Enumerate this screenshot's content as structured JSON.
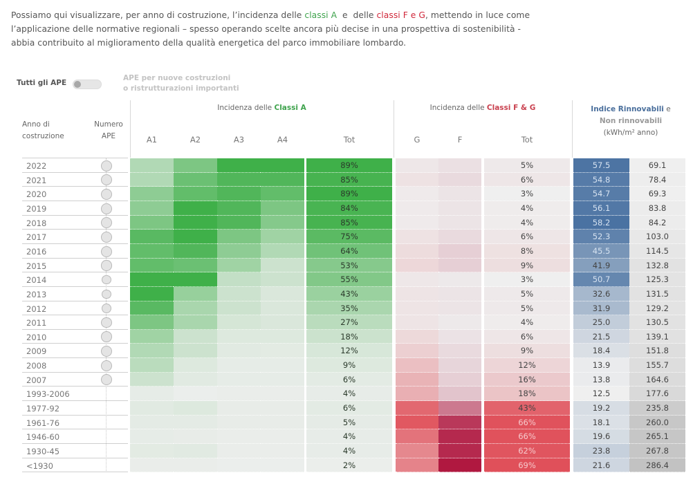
{
  "intro": {
    "line1_a": "Possiamo qui visualizzare, per anno di costruzione, l’incidenza delle ",
    "line1_green": "classi A",
    "line1_b": "  e  delle ",
    "line1_red": "classi F e G",
    "line1_c": ", mettendo in luce come",
    "line2": "l’applicazione delle normative regionali – spesso operando scelte ancora più decise in una prospettiva di sostenibilità -",
    "line3": "abbia contribuito al miglioramento della qualità energetica del parco immobiliare lombardo."
  },
  "toggle": {
    "left_label": "Tutti gli APE",
    "right_label_line1": "APE per nuove costruzioni",
    "right_label_line2": "o ristrutturazioni importanti",
    "state": "off"
  },
  "headers": {
    "year_line1": "Anno di",
    "year_line2": "costruzione",
    "count_line1": "Numero",
    "count_line2": "APE",
    "classA_prefix": "Incidenza delle ",
    "classA_highlight": "Classi A",
    "classFG_prefix": "Incidenza delle ",
    "classFG_highlight": "Classi F & G",
    "index_highlight": "Indice Rinnovabili",
    "index_suffix": " e",
    "index_line2": "Non rinnovabili",
    "index_line3": "(kWh/m² anno)",
    "A1": "A1",
    "A2": "A2",
    "A3": "A3",
    "A4": "A4",
    "A_tot": "Tot",
    "G": "G",
    "F": "F",
    "FG_tot": "Tot"
  },
  "colors": {
    "green_max": "#3fb049",
    "red_max": "#e0505a",
    "crimson_max": "#b01840",
    "blue_max": "#4a72a2",
    "gray_max": "#c2c2c2",
    "neutral": "#efefef"
  },
  "chart_data": {
    "type": "heatmap",
    "title": "Incidenza delle classi energetiche per anno di costruzione",
    "rows": [
      "2022",
      "2021",
      "2020",
      "2019",
      "2018",
      "2017",
      "2016",
      "2015",
      "2014",
      "2013",
      "2012",
      "2011",
      "2010",
      "2009",
      "2008",
      "2007",
      "1993-2006",
      "1977-92",
      "1961-76",
      "1946-60",
      "1930-45",
      "<1930"
    ],
    "apes_circle_size": [
      1,
      1,
      1,
      1,
      1,
      1,
      1,
      0.9,
      0.7,
      0.7,
      0.75,
      0.9,
      0.95,
      1,
      1,
      1,
      0,
      0,
      0,
      0,
      0,
      0
    ],
    "A_shares_intensity": {
      "A1": [
        0.35,
        0.35,
        0.55,
        0.55,
        0.65,
        0.85,
        0.8,
        0.8,
        1.0,
        1.0,
        0.85,
        0.65,
        0.45,
        0.35,
        0.3,
        0.2,
        0.05,
        0.08,
        0.06,
        0.05,
        0.07,
        0.03
      ],
      "A2": [
        0.65,
        0.75,
        0.8,
        1.0,
        1.0,
        1.0,
        0.9,
        0.75,
        1.0,
        0.5,
        0.4,
        0.4,
        0.2,
        0.2,
        0.1,
        0.08,
        0.02,
        0.1,
        0.06,
        0.04,
        0.08,
        0.03
      ],
      "A3": [
        1.0,
        0.9,
        0.9,
        0.9,
        0.9,
        0.65,
        0.55,
        0.45,
        0.25,
        0.2,
        0.2,
        0.15,
        0.1,
        0.08,
        0.05,
        0.05,
        0.03,
        0.04,
        0.04,
        0.03,
        0.03,
        0.02
      ],
      "A4": [
        1.0,
        0.9,
        0.8,
        0.65,
        0.6,
        0.45,
        0.35,
        0.2,
        0.2,
        0.12,
        0.12,
        0.12,
        0.1,
        0.07,
        0.05,
        0.05,
        0.03,
        0.04,
        0.04,
        0.03,
        0.03,
        0.02
      ]
    },
    "A_tot_pct": [
      89,
      85,
      89,
      84,
      85,
      75,
      64,
      53,
      55,
      43,
      35,
      27,
      18,
      12,
      9,
      6,
      4,
      6,
      5,
      4,
      4,
      2
    ],
    "G_intensity": [
      0.05,
      0.08,
      0.03,
      0.03,
      0.03,
      0.08,
      0.12,
      0.15,
      0.05,
      0.07,
      0.07,
      0.07,
      0.14,
      0.2,
      0.3,
      0.38,
      0.4,
      0.85,
      0.95,
      0.78,
      0.65,
      0.68
    ],
    "F_intensity": [
      0.07,
      0.1,
      0.05,
      0.05,
      0.05,
      0.1,
      0.15,
      0.15,
      0.03,
      0.05,
      0.05,
      0.03,
      0.06,
      0.1,
      0.12,
      0.15,
      0.2,
      0.55,
      0.85,
      0.92,
      0.92,
      1.0
    ],
    "FG_tot_pct": [
      5,
      6,
      3,
      4,
      4,
      6,
      8,
      9,
      3,
      5,
      5,
      4,
      6,
      9,
      12,
      16,
      18,
      43,
      66,
      66,
      62,
      69
    ],
    "renewable_index": [
      57.5,
      54.8,
      54.7,
      56.1,
      58.2,
      52.3,
      45.5,
      41.9,
      50.7,
      32.6,
      31.9,
      25.0,
      21.5,
      18.4,
      13.9,
      13.8,
      12.5,
      19.2,
      18.1,
      19.6,
      23.8,
      21.6
    ],
    "non_renewable_index": [
      69.1,
      78.4,
      69.3,
      83.8,
      84.2,
      103.0,
      114.5,
      132.8,
      125.3,
      131.5,
      129.2,
      130.5,
      139.1,
      151.8,
      155.7,
      164.6,
      177.6,
      235.8,
      260.0,
      265.1,
      267.8,
      286.4
    ],
    "units": "kWh/m² anno"
  }
}
